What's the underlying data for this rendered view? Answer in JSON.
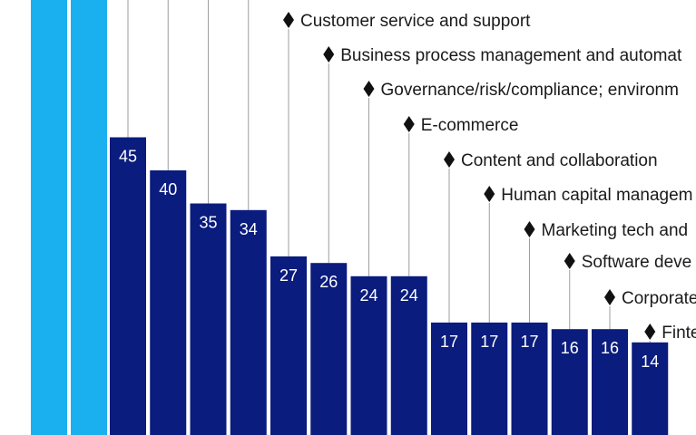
{
  "chart_data": {
    "type": "bar",
    "title": "",
    "xlabel": "",
    "ylabel": "",
    "ylim": [
      0,
      56
    ],
    "grid": false,
    "colors": {
      "primary_bar": "#0a1c7d",
      "cropped_bar": "#1ab0f0",
      "leader_line": "#9e9e9e",
      "marker": "#111111"
    },
    "visible_labels": [
      "Customer service and support",
      "Business process management and automat",
      "Governance/risk/compliance; environm",
      "E-commerce",
      "Content and collaboration",
      "Human capital managem",
      "Marketing tech and",
      "Software deve",
      "Corporate",
      "Finte"
    ],
    "values": [
      45,
      40,
      35,
      34,
      27,
      26,
      24,
      24,
      17,
      17,
      17,
      16,
      16,
      14
    ]
  }
}
